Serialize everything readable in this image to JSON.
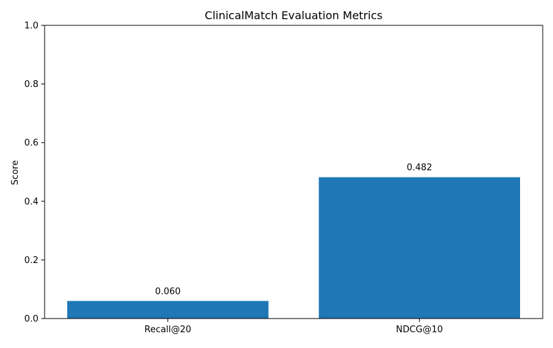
{
  "chart_data": {
    "type": "bar",
    "title": "ClinicalMatch Evaluation Metrics",
    "xlabel": "",
    "ylabel": "Score",
    "categories": [
      "Recall@20",
      "NDCG@10"
    ],
    "values": [
      0.06,
      0.482
    ],
    "data_labels": [
      "0.060",
      "0.482"
    ],
    "ylim": [
      0,
      1.0
    ],
    "yticks": [
      0.0,
      0.2,
      0.4,
      0.6,
      0.8,
      1.0
    ],
    "ytick_labels": [
      "0.0",
      "0.2",
      "0.4",
      "0.6",
      "0.8",
      "1.0"
    ],
    "grid": false,
    "legend": "none",
    "bar_color": "#1f77b4"
  }
}
